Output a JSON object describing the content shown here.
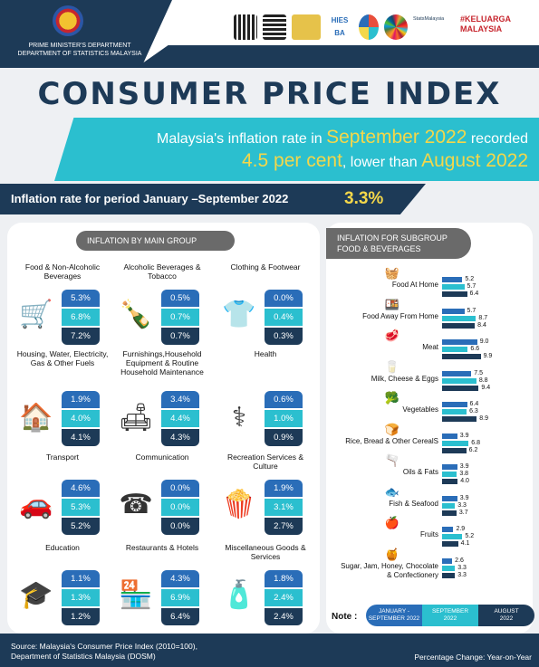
{
  "header": {
    "dept_line1": "PRIME MINISTER'S DEPARTMENT",
    "dept_line2": "DEPARTMENT OF STATISTICS MALAYSIA",
    "logo_hies": "HIES BA",
    "logo_keluarga": "#KELUARGA MALAYSIA",
    "logo_statsmalaysia": "StatsMalaysia"
  },
  "title": "CONSUMER PRICE INDEX",
  "banner": {
    "l1_pre": "Malaysia's inflation rate in ",
    "l1_hl": "September 2022",
    "l1_post": " recorded",
    "l2_hl1": "4.5 per cent",
    "l2_mid": ", lower than ",
    "l2_hl2": "August 2022"
  },
  "period": {
    "label": "Inflation rate for period January –September 2022",
    "value": "3.3%"
  },
  "main_title": "INFLATION BY MAIN GROUP",
  "main_groups": [
    {
      "name": "Food & Non-Alcoholic Beverages",
      "icon": "groceries-icon",
      "glyph": "🛒",
      "jan_sep": "5.3%",
      "sep": "6.8%",
      "aug": "7.2%"
    },
    {
      "name": "Alcoholic Beverages & Tobacco",
      "icon": "bottles-icon",
      "glyph": "🍾",
      "jan_sep": "0.5%",
      "sep": "0.7%",
      "aug": "0.7%"
    },
    {
      "name": "Clothing & Footwear",
      "icon": "wardrobe-icon",
      "glyph": "👕",
      "jan_sep": "0.0%",
      "sep": "0.4%",
      "aug": "0.3%"
    },
    {
      "name": "Housing, Water, Electricity, Gas & Other Fuels",
      "icon": "house-icon",
      "glyph": "🏠",
      "jan_sep": "1.9%",
      "sep": "4.0%",
      "aug": "4.1%"
    },
    {
      "name": "Furnishings,Household Equipment & Routine Household Maintenance",
      "icon": "furniture-icon",
      "glyph": "🛋",
      "jan_sep": "3.4%",
      "sep": "4.4%",
      "aug": "4.3%"
    },
    {
      "name": "Health",
      "icon": "health-icon",
      "glyph": "⚕",
      "jan_sep": "0.6%",
      "sep": "1.0%",
      "aug": "0.9%"
    },
    {
      "name": "Transport",
      "icon": "car-icon",
      "glyph": "🚗",
      "jan_sep": "4.6%",
      "sep": "5.3%",
      "aug": "5.2%"
    },
    {
      "name": "Communication",
      "icon": "phone-icon",
      "glyph": "☎",
      "jan_sep": "0.0%",
      "sep": "0.0%",
      "aug": "0.0%"
    },
    {
      "name": "Recreation Services & Culture",
      "icon": "popcorn-icon",
      "glyph": "🍿",
      "jan_sep": "1.9%",
      "sep": "3.1%",
      "aug": "2.7%"
    },
    {
      "name": "Education",
      "icon": "graduation-icon",
      "glyph": "🎓",
      "jan_sep": "1.1%",
      "sep": "1.3%",
      "aug": "1.2%"
    },
    {
      "name": "Restaurants & Hotels",
      "icon": "restaurant-icon",
      "glyph": "🏪",
      "jan_sep": "4.3%",
      "sep": "6.9%",
      "aug": "6.4%"
    },
    {
      "name": "Miscellaneous Goods & Services",
      "icon": "toiletries-icon",
      "glyph": "🧴",
      "jan_sep": "1.8%",
      "sep": "2.4%",
      "aug": "2.4%"
    }
  ],
  "sub_title_l1": "INFLATION FOR SUBGROUP",
  "sub_title_l2": "FOOD & BEVERAGES",
  "chart_data": {
    "type": "bar",
    "categories": [
      "Food At Home",
      "Food Away From Home",
      "Meat",
      "Milk, Cheese & Eggs",
      "Vegetables",
      "Rice, Bread & Other CerealS",
      "Oils & Fats",
      "Fish & Seafood",
      "Fruits",
      "Sugar, Jam, Honey, Chocolate & Confectionery"
    ],
    "icons": [
      "basket-icon",
      "takeaway-icon",
      "meat-icon",
      "milk-icon",
      "vegetables-icon",
      "bread-icon",
      "oil-icon",
      "fish-icon",
      "fruit-icon",
      "jam-icon"
    ],
    "glyphs": [
      "🧺",
      "🍱",
      "🥩",
      "🥛",
      "🥦",
      "🍞",
      "🫗",
      "🐟",
      "🍎",
      "🍯"
    ],
    "series": [
      {
        "name": "JANUARY – SEPTEMBER 2022",
        "color": "#2a6db8",
        "values": [
          5.2,
          5.7,
          9.0,
          7.5,
          6.4,
          3.9,
          3.9,
          3.9,
          2.9,
          2.6
        ]
      },
      {
        "name": "SEPTEMBER 2022",
        "color": "#2bbfcf",
        "values": [
          5.7,
          8.7,
          6.6,
          8.8,
          6.3,
          6.8,
          3.8,
          3.3,
          5.2,
          3.3
        ]
      },
      {
        "name": "AUGUST 2022",
        "color": "#1d3a57",
        "values": [
          6.4,
          8.4,
          9.9,
          9.4,
          8.9,
          6.2,
          4.0,
          3.7,
          4.1,
          3.3
        ]
      }
    ]
  },
  "note_label": "Note :",
  "legend": [
    {
      "l1": "JANUARY -",
      "l2": "SEPTEMBER 2022",
      "color": "#2a6db8"
    },
    {
      "l1": "SEPTEMBER",
      "l2": "2022",
      "color": "#2bbfcf"
    },
    {
      "l1": "AUGUST",
      "l2": "2022",
      "color": "#1d3a57"
    }
  ],
  "footer": {
    "source_l1": "Source: Malaysia's Consumer Price Index (2010=100),",
    "source_l2": "Department of Statistics Malaysia (DOSM)",
    "pct": "Percentage Change: Year-on-Year"
  }
}
